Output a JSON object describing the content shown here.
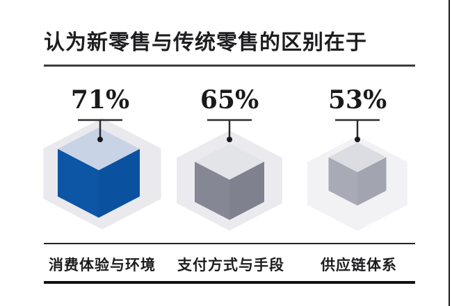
{
  "title": "认为新零售与传统零售的区别在于",
  "groups": [
    {
      "value_label": "71%",
      "label": "消费体验与环境",
      "bg_hex_color": "#e9e9ee",
      "cube_top_color": "#c9d3e6",
      "cube_left_color": "#0d55a5",
      "cube_right_color": "#0a51a0"
    },
    {
      "value_label": "65%",
      "label": "支付方式与手段",
      "bg_hex_color": "#ebebef",
      "cube_top_color": "#e3e4e8",
      "cube_left_color": "#858794",
      "cube_right_color": "#7f818e"
    },
    {
      "value_label": "53%",
      "label": "供应链体系",
      "bg_hex_color": "#f2f2f5",
      "cube_top_color": "#dcdde2",
      "cube_left_color": "#a8aab5",
      "cube_right_color": "#a2a4af"
    }
  ],
  "chart_data": {
    "type": "bar",
    "title": "认为新零售与传统零售的区别在于",
    "categories": [
      "消费体验与环境",
      "支付方式与手段",
      "供应链体系"
    ],
    "values": [
      71,
      65,
      53
    ],
    "unit": "%",
    "value_labels": [
      "71%",
      "65%",
      "53%"
    ],
    "style": "isometric cube pictogram; inner colored cube size proportional to value, light gray backdrop hexagon = 100%",
    "legend": "none",
    "grid": false
  },
  "colors": {
    "accent_blue": "#0d55a5",
    "text": "#1d1d1f",
    "callout": "#2b2b2d",
    "rule_title": "#3c3c3e",
    "rule_bottom": "#101012"
  }
}
